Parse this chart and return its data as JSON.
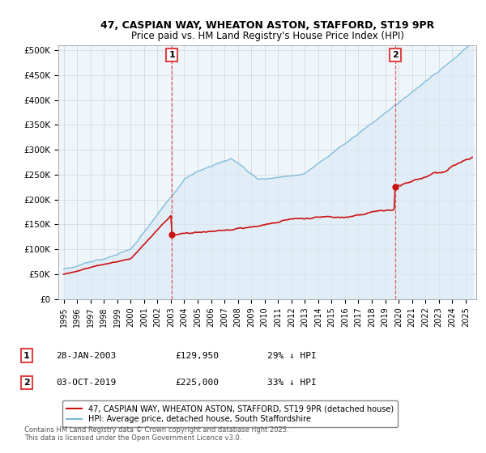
{
  "title": "47, CASPIAN WAY, WHEATON ASTON, STAFFORD, ST19 9PR",
  "subtitle": "Price paid vs. HM Land Registry's House Price Index (HPI)",
  "ylabel_ticks": [
    "£0",
    "£50K",
    "£100K",
    "£150K",
    "£200K",
    "£250K",
    "£300K",
    "£350K",
    "£400K",
    "£450K",
    "£500K"
  ],
  "ytick_values": [
    0,
    50000,
    100000,
    150000,
    200000,
    250000,
    300000,
    350000,
    400000,
    450000,
    500000
  ],
  "ylim": [
    0,
    510000
  ],
  "xlim_start": 1994.6,
  "xlim_end": 2025.8,
  "hpi_color": "#7ab8d9",
  "hpi_fill_color": "#daeaf5",
  "price_color": "#cc1111",
  "vline_color": "#dd4444",
  "marker1_date": 2003.08,
  "marker1_price": 129950,
  "marker2_date": 2019.75,
  "marker2_price": 225000,
  "legend_line1": "47, CASPIAN WAY, WHEATON ASTON, STAFFORD, ST19 9PR (detached house)",
  "legend_line2": "HPI: Average price, detached house, South Staffordshire",
  "annotation1_box": "1",
  "annotation1_date": "28-JAN-2003",
  "annotation1_price": "£129,950",
  "annotation1_hpi": "29% ↓ HPI",
  "annotation2_box": "2",
  "annotation2_date": "03-OCT-2019",
  "annotation2_price": "£225,000",
  "annotation2_hpi": "33% ↓ HPI",
  "footnote": "Contains HM Land Registry data © Crown copyright and database right 2025.\nThis data is licensed under the Open Government Licence v3.0.",
  "background_color": "#ffffff",
  "plot_bg_color": "#eef5fb",
  "grid_color": "#cccccc"
}
